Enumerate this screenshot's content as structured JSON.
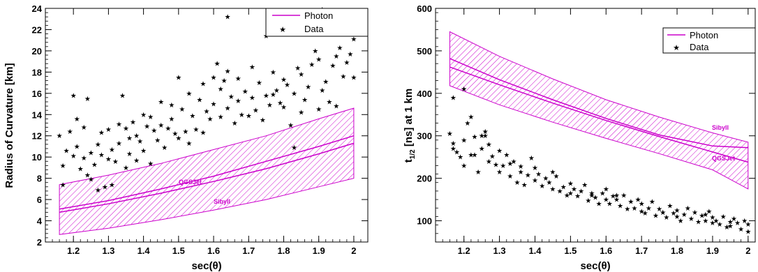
{
  "chart_data": [
    {
      "type": "scatter",
      "xlabel": "sec(θ)",
      "ylabel": "Radius of Curvature [km]",
      "xlim": [
        1.12,
        2.04
      ],
      "ylim": [
        2,
        24
      ],
      "xticks": [
        "1.2",
        "1.3",
        "1.4",
        "1.5",
        "1.6",
        "1.7",
        "1.8",
        "1.9",
        "2"
      ],
      "yticks": [
        "2",
        "4",
        "6",
        "8",
        "10",
        "12",
        "14",
        "16",
        "18",
        "20",
        "22",
        "24"
      ],
      "x_tick_values": [
        1.2,
        1.3,
        1.4,
        1.5,
        1.6,
        1.7,
        1.8,
        1.9,
        2.0
      ],
      "y_tick_values": [
        2,
        4,
        6,
        8,
        10,
        12,
        14,
        16,
        18,
        20,
        22,
        24
      ],
      "legend": {
        "position": "top-right",
        "entries": [
          "Photon",
          "Data"
        ]
      },
      "band_color": "#cc00cc",
      "band": {
        "x": [
          1.16,
          1.3,
          1.45,
          1.6,
          1.75,
          1.9,
          2.0
        ],
        "upper": [
          7.4,
          8.3,
          9.4,
          10.7,
          12.0,
          13.6,
          14.6
        ],
        "lower": [
          2.7,
          3.3,
          4.1,
          5.0,
          6.0,
          7.2,
          8.0
        ]
      },
      "series": [
        {
          "name": "Sibyll",
          "x": [
            1.16,
            1.3,
            1.45,
            1.6,
            1.75,
            1.9,
            2.0
          ],
          "y": [
            4.8,
            5.6,
            6.6,
            7.7,
            8.9,
            10.3,
            11.3
          ]
        },
        {
          "name": "QGSJet",
          "x": [
            1.16,
            1.3,
            1.45,
            1.6,
            1.75,
            1.9,
            2.0
          ],
          "y": [
            5.1,
            5.9,
            7.0,
            8.2,
            9.6,
            11.0,
            12.0
          ]
        },
        {
          "name": "Data",
          "x": [
            1.16,
            1.17,
            1.17,
            1.18,
            1.19,
            1.2,
            1.2,
            1.21,
            1.21,
            1.22,
            1.23,
            1.23,
            1.24,
            1.24,
            1.25,
            1.25,
            1.26,
            1.27,
            1.27,
            1.28,
            1.28,
            1.29,
            1.3,
            1.3,
            1.31,
            1.31,
            1.32,
            1.33,
            1.33,
            1.34,
            1.35,
            1.35,
            1.36,
            1.36,
            1.37,
            1.38,
            1.38,
            1.39,
            1.4,
            1.4,
            1.41,
            1.42,
            1.42,
            1.43,
            1.44,
            1.45,
            1.45,
            1.46,
            1.47,
            1.48,
            1.48,
            1.49,
            1.5,
            1.5,
            1.51,
            1.52,
            1.53,
            1.53,
            1.54,
            1.55,
            1.56,
            1.57,
            1.57,
            1.58,
            1.59,
            1.6,
            1.6,
            1.61,
            1.62,
            1.62,
            1.63,
            1.64,
            1.64,
            1.65,
            1.66,
            1.67,
            1.67,
            1.68,
            1.69,
            1.7,
            1.71,
            1.71,
            1.72,
            1.73,
            1.74,
            1.75,
            1.75,
            1.76,
            1.77,
            1.78,
            1.79,
            1.8,
            1.8,
            1.81,
            1.82,
            1.83,
            1.84,
            1.85,
            1.85,
            1.86,
            1.87,
            1.88,
            1.89,
            1.9,
            1.9,
            1.91,
            1.92,
            1.93,
            1.94,
            1.95,
            1.95,
            1.96,
            1.97,
            1.98,
            1.99,
            2.0,
            2.0,
            1.64,
            1.91,
            1.77,
            1.83
          ],
          "y": [
            12.0,
            9.2,
            7.4,
            10.6,
            12.4,
            15.8,
            10.1,
            13.6,
            11.0,
            8.9,
            9.9,
            12.8,
            8.3,
            15.5,
            10.4,
            7.9,
            9.3,
            11.2,
            6.9,
            10.2,
            12.3,
            7.2,
            9.8,
            12.6,
            7.4,
            10.7,
            9.6,
            13.1,
            11.3,
            15.8,
            12.7,
            9.0,
            11.8,
            10.3,
            13.3,
            12.0,
            9.7,
            11.5,
            14.0,
            10.6,
            12.9,
            13.8,
            9.4,
            12.5,
            11.6,
            15.2,
            13.0,
            10.9,
            12.7,
            13.6,
            14.9,
            12.2,
            17.5,
            11.8,
            14.5,
            12.4,
            16.0,
            11.3,
            13.9,
            12.6,
            15.4,
            16.9,
            12.3,
            14.3,
            13.6,
            17.5,
            15.0,
            18.8,
            13.8,
            16.4,
            17.2,
            14.6,
            18.1,
            15.7,
            13.2,
            17.4,
            15.3,
            14.0,
            16.2,
            13.9,
            18.5,
            15.6,
            14.4,
            17.0,
            13.5,
            15.8,
            21.4,
            14.9,
            18.0,
            16.3,
            15.1,
            17.3,
            14.7,
            16.8,
            13.0,
            16.0,
            18.4,
            14.2,
            17.8,
            15.4,
            16.6,
            18.7,
            20.0,
            14.5,
            19.2,
            16.3,
            17.1,
            15.2,
            18.6,
            19.5,
            14.8,
            20.3,
            17.6,
            18.9,
            19.7,
            21.1,
            17.5,
            23.2,
            23.9,
            15.9,
            10.9
          ]
        }
      ]
    },
    {
      "type": "scatter",
      "xlabel": "sec(θ)",
      "ylabel": "t",
      "ylabel_sub": "1/2",
      "ylabel_rest": " [ns] at 1 km",
      "xlim": [
        1.12,
        2.02
      ],
      "ylim": [
        50,
        600
      ],
      "xticks": [
        "1.2",
        "1.3",
        "1.4",
        "1.5",
        "1.6",
        "1.7",
        "1.8",
        "1.9",
        "2"
      ],
      "yticks": [
        "100",
        "200",
        "300",
        "400",
        "500",
        "600"
      ],
      "x_tick_values": [
        1.2,
        1.3,
        1.4,
        1.5,
        1.6,
        1.7,
        1.8,
        1.9,
        2.0
      ],
      "y_tick_values": [
        100,
        200,
        300,
        400,
        500,
        600
      ],
      "legend": {
        "position": "top-right",
        "entries": [
          "Photon",
          "Data"
        ]
      },
      "band_color": "#cc00cc",
      "band": {
        "x": [
          1.16,
          1.3,
          1.45,
          1.6,
          1.75,
          1.9,
          2.0
        ],
        "upper": [
          545,
          487,
          434,
          385,
          344,
          307,
          285
        ],
        "lower": [
          418,
          373,
          332,
          294,
          258,
          220,
          175
        ]
      },
      "series": [
        {
          "name": "Sibyll",
          "x": [
            1.16,
            1.3,
            1.45,
            1.6,
            1.75,
            1.9,
            2.0
          ],
          "y": [
            482,
            432,
            385,
            341,
            302,
            276,
            272
          ]
        },
        {
          "name": "QGSJet",
          "x": [
            1.16,
            1.3,
            1.45,
            1.6,
            1.75,
            1.9,
            2.0
          ],
          "y": [
            462,
            420,
            377,
            336,
            298,
            262,
            238
          ]
        },
        {
          "name": "Data",
          "x": [
            1.16,
            1.17,
            1.17,
            1.18,
            1.19,
            1.2,
            1.2,
            1.21,
            1.22,
            1.23,
            1.23,
            1.24,
            1.25,
            1.25,
            1.26,
            1.27,
            1.27,
            1.28,
            1.29,
            1.3,
            1.3,
            1.31,
            1.32,
            1.33,
            1.33,
            1.34,
            1.35,
            1.36,
            1.36,
            1.37,
            1.38,
            1.39,
            1.4,
            1.4,
            1.41,
            1.42,
            1.43,
            1.44,
            1.45,
            1.46,
            1.47,
            1.48,
            1.49,
            1.5,
            1.5,
            1.51,
            1.52,
            1.53,
            1.54,
            1.55,
            1.56,
            1.57,
            1.58,
            1.59,
            1.6,
            1.6,
            1.61,
            1.62,
            1.63,
            1.64,
            1.65,
            1.66,
            1.67,
            1.68,
            1.69,
            1.7,
            1.7,
            1.71,
            1.72,
            1.73,
            1.74,
            1.75,
            1.76,
            1.77,
            1.78,
            1.79,
            1.8,
            1.8,
            1.81,
            1.82,
            1.83,
            1.84,
            1.85,
            1.86,
            1.87,
            1.88,
            1.89,
            1.9,
            1.9,
            1.91,
            1.92,
            1.93,
            1.94,
            1.95,
            1.95,
            1.96,
            1.97,
            1.98,
            1.99,
            2.0,
            2.0,
            1.17,
            1.2,
            1.22,
            1.26,
            1.45,
            1.56,
            1.63,
            1.76,
            1.88
          ],
          "y": [
            305,
            390,
            282,
            262,
            250,
            410,
            230,
            330,
            345,
            298,
            255,
            215,
            300,
            270,
            310,
            240,
            280,
            252,
            232,
            265,
            215,
            230,
            255,
            205,
            235,
            240,
            190,
            228,
            215,
            185,
            208,
            248,
            225,
            195,
            210,
            182,
            200,
            190,
            175,
            205,
            170,
            180,
            160,
            188,
            165,
            175,
            158,
            170,
            185,
            148,
            160,
            155,
            140,
            165,
            150,
            175,
            140,
            158,
            150,
            135,
            160,
            128,
            145,
            130,
            150,
            122,
            140,
            118,
            130,
            145,
            112,
            128,
            120,
            108,
            135,
            118,
            110,
            125,
            100,
            115,
            130,
            105,
            120,
            98,
            112,
            100,
            122,
            95,
            108,
            100,
            92,
            110,
            85,
            98,
            88,
            105,
            95,
            80,
            100,
            92,
            75,
            270,
            290,
            255,
            300,
            215,
            165,
            160,
            120,
            115
          ]
        }
      ]
    }
  ]
}
